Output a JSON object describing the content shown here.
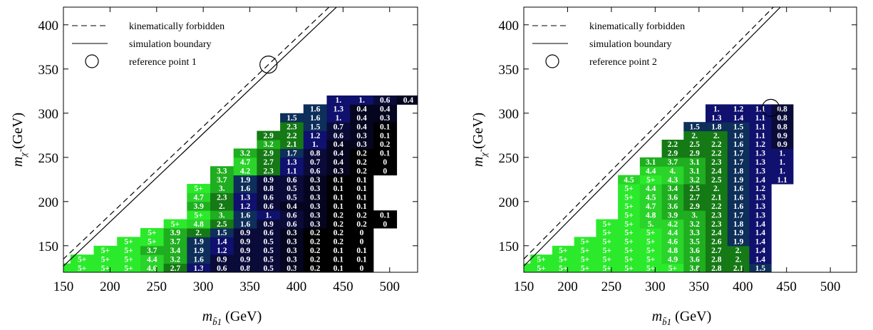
{
  "chart_data": [
    {
      "type": "heatmap",
      "xlabel": "m_b̃1 (GeV)",
      "ylabel": "m_χ̃ (GeV)",
      "xlim": [
        150,
        530
      ],
      "ylim": [
        120,
        420
      ],
      "x_ticks": [
        150,
        200,
        250,
        300,
        350,
        400,
        450,
        500
      ],
      "y_ticks": [
        150,
        200,
        250,
        300,
        350,
        400
      ],
      "x_centers": [
        145,
        170,
        195,
        220,
        245,
        270,
        295,
        320,
        345,
        370,
        395,
        420,
        445,
        470,
        495,
        520
      ],
      "y_centers": [
        125,
        135,
        145,
        155,
        165,
        175,
        185,
        195,
        205,
        215,
        225,
        235,
        245,
        255,
        265,
        275,
        285,
        295,
        305,
        315,
        325,
        335,
        345,
        355,
        365,
        375,
        385,
        395,
        405,
        415
      ],
      "legend": [
        {
          "style": "dashed",
          "label": "kinematically forbidden"
        },
        {
          "style": "solid",
          "label": "simulation boundary"
        },
        {
          "style": "circle",
          "label": "reference point 1"
        }
      ],
      "reference_point": [
        370,
        355
      ],
      "rows": [
        [
          "5+",
          "5+",
          "5+",
          "5+",
          "4.6",
          "2.7",
          "1.3",
          "0.6",
          "0.8",
          "0.5",
          "0.3",
          "0.2",
          "0.1",
          "0"
        ],
        [
          "5+",
          "5+",
          "5+",
          "4.4",
          "3.2",
          "1.6",
          "0.9",
          "0.9",
          "0.5",
          "0.3",
          "0.2",
          "0.1",
          "0.1"
        ],
        [
          "5+",
          "5+",
          "3.7",
          "3.4",
          "1.9",
          "1.2",
          "0.9",
          "0.5",
          "0.3",
          "0.2",
          "0.1",
          "0.1"
        ],
        [
          "5+",
          "5+",
          "3.7",
          "1.9",
          "1.4",
          "0.9",
          "0.5",
          "0.3",
          "0.2",
          "0.2",
          "0"
        ],
        [
          "5+",
          "3.9",
          "2.",
          "1.5",
          "0.9",
          "0.6",
          "0.3",
          "0.2",
          "0.2",
          "0"
        ],
        [
          "5+",
          "4.8",
          "2.5",
          "1.6",
          "0.9",
          "0.6",
          "0.3",
          "0.2",
          "0.2",
          "0"
        ],
        [
          "5+",
          "3.",
          "1.6",
          "1.",
          "0.6",
          "0.3",
          "0.2",
          "0.2",
          "0.1"
        ],
        [
          "3.9",
          "2.",
          "1.2",
          "0.6",
          "0.4",
          "0.3",
          "0.1",
          "0.1"
        ],
        [
          "4.7",
          "2.3",
          "1.3",
          "0.6",
          "0.5",
          "0.3",
          "0.1",
          "0.1"
        ],
        [
          "5+",
          "3.",
          "1.6",
          "0.8",
          "0.5",
          "0.3",
          "0.1",
          "0.1"
        ],
        [
          "3.7",
          "1.9",
          "0.9",
          "0.6",
          "0.3",
          "0.1",
          "0.1"
        ],
        [
          "3.3",
          "4.2",
          "2.3",
          "1.1",
          "0.6",
          "0.3",
          "0.2",
          "0"
        ],
        [
          "4.7",
          "2.7",
          "1.3",
          "0.7",
          "0.4",
          "0.2",
          "0"
        ],
        [
          "3.2",
          "2.9",
          "1.7",
          "0.8",
          "0.4",
          "0.2",
          "0.1"
        ],
        [
          "3.2",
          "2.1",
          "1.",
          "0.4",
          "0.3",
          "0.2"
        ],
        [
          "2.9",
          "2.2",
          "1.2",
          "0.6",
          "0.3",
          "0.1"
        ],
        [
          "2.3",
          "1.5",
          "0.7",
          "0.4",
          "0.1"
        ],
        [
          "1.5",
          "1.6",
          "1.",
          "0.4",
          "0.3"
        ],
        [
          "1.6",
          "1.3",
          "0.4",
          "0.4"
        ],
        [
          "1.",
          "1.",
          "0.6",
          "0.4"
        ]
      ],
      "row_start_col": [
        0,
        1,
        2,
        3,
        4,
        5,
        6,
        6,
        6,
        6,
        7,
        7,
        8,
        8,
        9,
        9,
        10,
        10,
        11,
        12
      ],
      "row_y": [
        125,
        135,
        145,
        155,
        165,
        175,
        185,
        195,
        205,
        215,
        225,
        235,
        245,
        255,
        265,
        275,
        285,
        295,
        305,
        315
      ]
    },
    {
      "type": "heatmap",
      "xlabel": "m_b̃1 (GeV)",
      "ylabel": "m_χ̃ (GeV)",
      "xlim": [
        150,
        530
      ],
      "ylim": [
        120,
        420
      ],
      "x_ticks": [
        150,
        200,
        250,
        300,
        350,
        400,
        450,
        500
      ],
      "y_ticks": [
        150,
        200,
        250,
        300,
        350,
        400
      ],
      "legend": [
        {
          "style": "dashed",
          "label": "kinematically forbidden"
        },
        {
          "style": "solid",
          "label": "simulation boundary"
        },
        {
          "style": "circle",
          "label": "reference point 2"
        }
      ],
      "reference_point": [
        432,
        306
      ],
      "rows": [
        [
          "5+",
          "5+",
          "5+",
          "5+",
          "5+",
          "5+",
          "5+",
          "5+",
          "3.8",
          "2.8",
          "2.1",
          "1.5"
        ],
        [
          "5+",
          "5+",
          "5+",
          "5+",
          "5+",
          "5+",
          "4.9",
          "3.6",
          "2.8",
          "2.",
          "1.4"
        ],
        [
          "5+",
          "5+",
          "5+",
          "5+",
          "5+",
          "4.8",
          "3.6",
          "2.7",
          "2.",
          "1.4"
        ],
        [
          "5+",
          "5+",
          "5+",
          "5+",
          "4.6",
          "3.5",
          "2.6",
          "1.9",
          "1.4"
        ],
        [
          "5+",
          "5+",
          "5+",
          "4.4",
          "3.3",
          "2.4",
          "1.9",
          "1.4"
        ],
        [
          "5+",
          "5+",
          "5.",
          "4.2",
          "3.2",
          "2.3",
          "1.8",
          "1.4"
        ],
        [
          "5+",
          "4.8",
          "3.9",
          "3.",
          "2.3",
          "1.7",
          "1.3"
        ],
        [
          "5+",
          "4.7",
          "3.6",
          "2.9",
          "2.2",
          "1.6",
          "1.3"
        ],
        [
          "5+",
          "4.5",
          "3.6",
          "2.7",
          "2.1",
          "1.6",
          "1.3"
        ],
        [
          "5+",
          "4.4",
          "3.4",
          "2.5",
          "2.",
          "1.6",
          "1.2"
        ],
        [
          "4.5",
          "5+",
          "4.3",
          "3.2",
          "2.5",
          "1.9",
          "1.4",
          "1.1"
        ],
        [
          "4.4",
          "4.",
          "3.1",
          "2.4",
          "1.8",
          "1.3",
          "1."
        ],
        [
          "3.1",
          "3.7",
          "3.1",
          "2.3",
          "1.7",
          "1.3",
          "1."
        ],
        [
          "2.9",
          "2.9",
          "2.2",
          "1.7",
          "1.3",
          "1."
        ],
        [
          "2.2",
          "2.5",
          "2.2",
          "1.6",
          "1.2",
          "0.9"
        ],
        [
          "2.",
          "2.",
          "1.6",
          "1.1",
          "0.9"
        ],
        [
          "1.5",
          "1.8",
          "1.5",
          "1.1",
          "0.8"
        ],
        [
          "1.3",
          "1.4",
          "1.1",
          "0.8"
        ],
        [
          "1.",
          "1.2",
          "1.1",
          "0.8"
        ]
      ],
      "row_start_col": [
        0,
        1,
        2,
        3,
        4,
        4,
        5,
        5,
        5,
        5,
        5,
        6,
        6,
        7,
        7,
        8,
        8,
        9,
        9
      ],
      "row_y": [
        125,
        135,
        145,
        155,
        165,
        175,
        185,
        195,
        205,
        215,
        225,
        235,
        245,
        255,
        265,
        275,
        285,
        295,
        305
      ]
    }
  ]
}
